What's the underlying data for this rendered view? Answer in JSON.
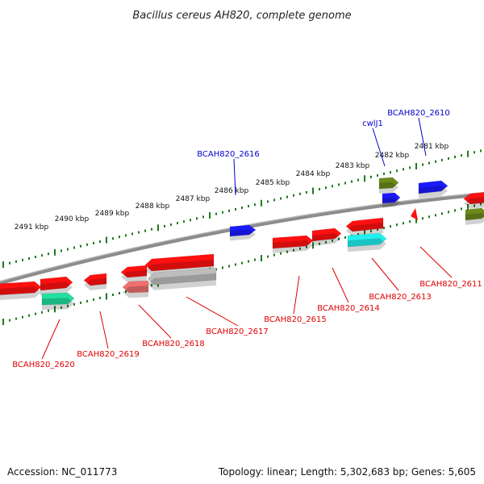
{
  "title": "Bacillus cereus AH820, complete genome",
  "footer": {
    "accession": "Accession: NC_011773",
    "summary": "Topology: linear; Length: 5,302,683 bp; Genes: 5,605"
  },
  "colors": {
    "backbone": "#8c8c8c",
    "tick": "#1e7a1e",
    "label_forward": "#0000cc",
    "label_reverse": "#dd0000",
    "feature_red": "#ff1010",
    "feature_blue": "#1a1aff",
    "feature_green": "#6b8a1a",
    "feature_cyan": "#22f0f0",
    "feature_mint": "#22e0a0",
    "feature_pink": "#f07070",
    "feature_grey": "#bdbdbd"
  },
  "scale_ticks": [
    "2491 kbp",
    "2490 kbp",
    "2489 kbp",
    "2488 kbp",
    "2487 kbp",
    "2486 kbp",
    "2485 kbp",
    "2484 kbp",
    "2483 kbp",
    "2482 kbp",
    "2481 kbp"
  ],
  "forward_labels": [
    "BCAH820_2616",
    "cwlJ1",
    "BCAH820_2610"
  ],
  "reverse_labels": [
    "BCAH820_2620",
    "BCAH820_2619",
    "BCAH820_2618",
    "BCAH820_2617",
    "BCAH820_2615",
    "BCAH820_2614",
    "BCAH820_2613",
    "BCAH820_2611"
  ]
}
